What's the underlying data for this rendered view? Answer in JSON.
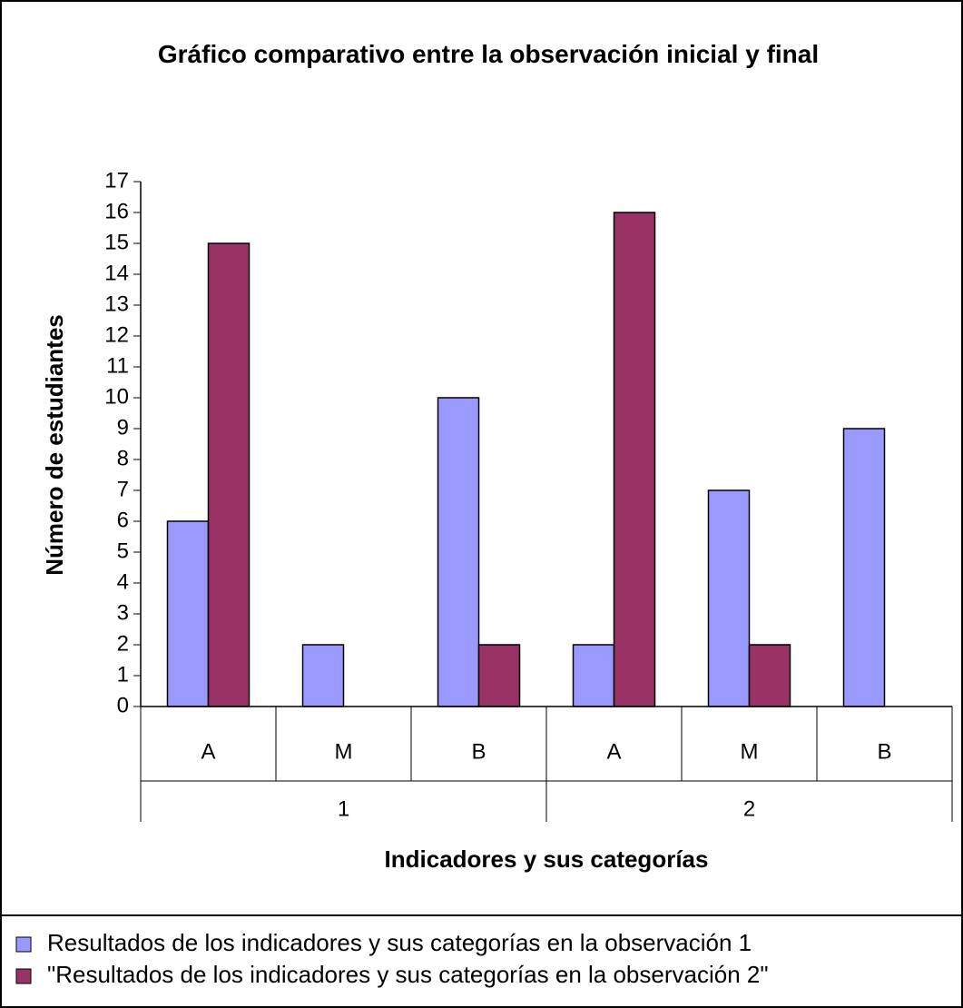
{
  "chart_data": {
    "type": "bar",
    "title": "Gráfico comparativo entre la observación inicial y final",
    "y_label": "Número de estudiantes",
    "x_label": "Indicadores y sus categorías",
    "categories": [
      "A",
      "M",
      "B",
      "A",
      "M",
      "B"
    ],
    "groups": [
      "1",
      "2"
    ],
    "series": [
      {
        "name": "Resultados de los indicadores y sus categorías en la observación 1",
        "color": "#9999ff",
        "values": [
          6,
          2,
          10,
          2,
          7,
          9
        ]
      },
      {
        "name": "\"Resultados de los indicadores y sus categorías en la observación 2\"",
        "color": "#993366",
        "values": [
          15,
          0,
          2,
          16,
          2,
          0
        ]
      }
    ],
    "ylim": [
      0,
      17
    ],
    "yticks": [
      0,
      1,
      2,
      3,
      4,
      5,
      6,
      7,
      8,
      9,
      10,
      11,
      12,
      13,
      14,
      15,
      16,
      17
    ],
    "grid": false,
    "legend": "bottom"
  }
}
